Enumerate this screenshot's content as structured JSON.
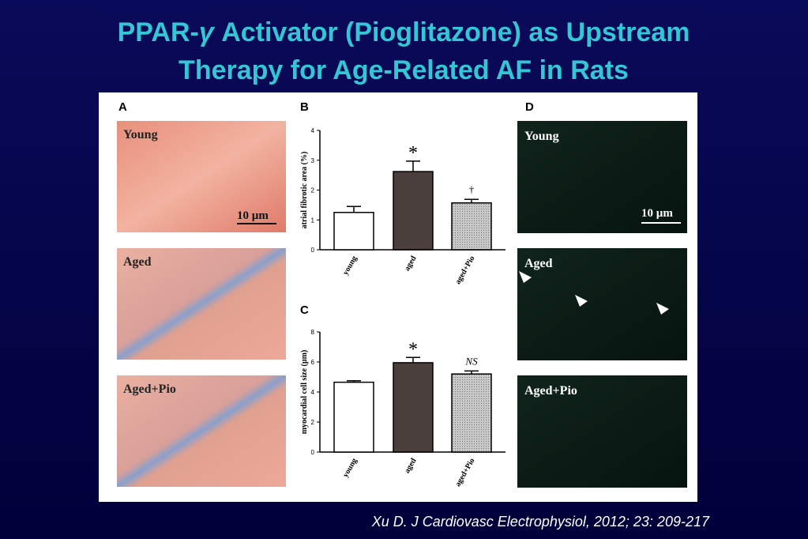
{
  "slide": {
    "title_line1": [
      "PPAR-",
      "γ",
      " Activator (Pioglitazone) as Upstream"
    ],
    "title_line2": "Therapy for Age-Related AF in Rats",
    "citation": "Xu D. J Cardiovasc Electrophysiol, 2012; 23: 209-217"
  },
  "panel_a": {
    "letter": "A",
    "images": [
      "Young",
      "Aged",
      "Aged+Pio"
    ],
    "scale": "10 µm"
  },
  "panel_d": {
    "letter": "D",
    "images": [
      "Young",
      "Aged",
      "Aged+Pio"
    ],
    "scale": "10 µm"
  },
  "chart_data": [
    {
      "type": "bar",
      "letter": "B",
      "ylabel": "atrial fibrotic area (%)",
      "categories": [
        "young",
        "aged",
        "aged+Pio"
      ],
      "values": [
        1.25,
        2.62,
        1.57
      ],
      "errors": [
        0.2,
        0.35,
        0.12
      ],
      "colors": [
        "#ffffff",
        "#4a3f3c",
        "#b8b8b8"
      ],
      "annotations": [
        {
          "text": "*",
          "category": "aged"
        },
        {
          "text": "†",
          "category": "aged+Pio"
        }
      ],
      "ylim": [
        0,
        4
      ],
      "yticks": [
        0,
        1,
        2,
        3,
        4
      ]
    },
    {
      "type": "bar",
      "letter": "C",
      "ylabel": "myocardial cell size (µm)",
      "categories": [
        "young",
        "aged",
        "aged+Pio"
      ],
      "values": [
        4.65,
        5.95,
        5.2
      ],
      "errors": [
        0.1,
        0.35,
        0.2
      ],
      "colors": [
        "#ffffff",
        "#4a3f3c",
        "#b8b8b8"
      ],
      "annotations": [
        {
          "text": "*",
          "category": "aged"
        },
        {
          "text": "NS",
          "category": "aged+Pio"
        }
      ],
      "ylim": [
        0,
        8
      ],
      "yticks": [
        0,
        2,
        4,
        6,
        8
      ]
    }
  ]
}
